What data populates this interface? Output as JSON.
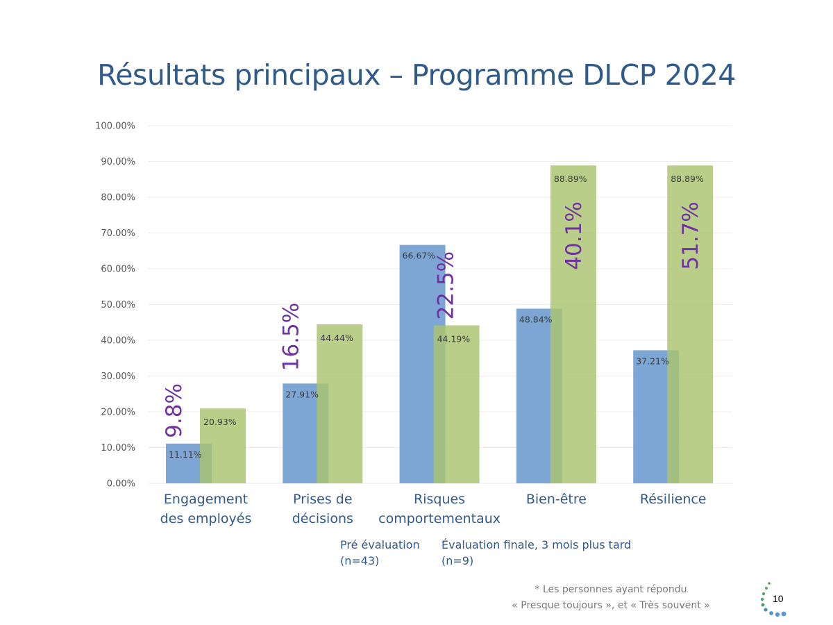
{
  "slide": {
    "title": "Résultats principaux – Programme DLCP 2024",
    "footnote_line1": "* Les personnes ayant répondu",
    "footnote_line2": "« Presque toujours », et « Très souvent »",
    "page_number": "10",
    "logo_icon": "dotted-arc-logo-icon"
  },
  "legend": {
    "series1_line1": "Pré évaluation",
    "series1_line2": "(n=43)",
    "series2_line1": "Évaluation finale, 3 mois plus tard",
    "series2_line2": "(n=9)"
  },
  "categories_display": [
    {
      "line1": "Engagement",
      "line2": "des employés"
    },
    {
      "line1": "Prises de",
      "line2": "décisions"
    },
    {
      "line1": "Risques",
      "line2": "comportementaux"
    },
    {
      "line1": "Bien-être",
      "line2": ""
    },
    {
      "line1": "Résilience",
      "line2": ""
    }
  ],
  "chart_data": {
    "type": "bar",
    "title": "Résultats principaux – Programme DLCP 2024",
    "xlabel": "",
    "ylabel": "",
    "categories": [
      "Engagement des employés",
      "Prises de décisions",
      "Risques comportementaux",
      "Bien-être",
      "Résilience"
    ],
    "series": [
      {
        "name": "Pré évaluation (n=43)",
        "color": "#7ea6d4",
        "values": [
          11.11,
          27.91,
          66.67,
          48.84,
          37.21
        ],
        "labels": [
          "11.11%",
          "27.91%",
          "66.67%",
          "48.84%",
          "37.21%"
        ]
      },
      {
        "name": "Évaluation finale, 3 mois plus tard (n=9)",
        "color": "#b5cd85",
        "values": [
          20.93,
          44.44,
          44.19,
          88.89,
          88.89
        ],
        "labels": [
          "20.93%",
          "44.44%",
          "44.19%",
          "88.89%",
          "88.89%"
        ]
      }
    ],
    "annotations": [
      "9.8%",
      "16.5%",
      "22.5%",
      "40.1%",
      "51.7%"
    ],
    "annotation_color": "#7030a0",
    "ylim": [
      0,
      100
    ],
    "yticks": [
      0,
      10,
      20,
      30,
      40,
      50,
      60,
      70,
      80,
      90,
      100
    ],
    "ytick_labels": [
      "0.00%",
      "10.00%",
      "20.00%",
      "30.00%",
      "40.00%",
      "50.00%",
      "60.00%",
      "70.00%",
      "80.00%",
      "90.00%",
      "100.00%"
    ],
    "grid": true,
    "legend_position": "bottom"
  }
}
